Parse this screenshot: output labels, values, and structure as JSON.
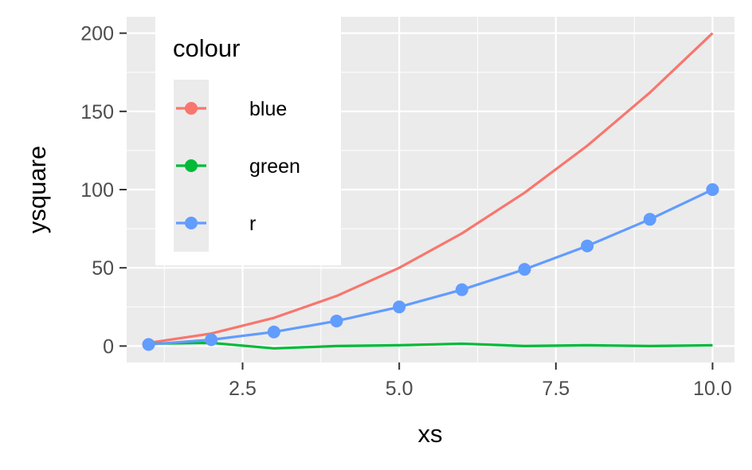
{
  "chart_data": {
    "type": "line",
    "xlabel": "xs",
    "ylabel": "ysquare",
    "xlim": [
      0.65,
      10.35
    ],
    "ylim": [
      -10.5,
      210.5
    ],
    "x_ticks": [
      2.5,
      5.0,
      7.5,
      10.0
    ],
    "x_tick_labels": [
      "2.5",
      "5.0",
      "7.5",
      "10.0"
    ],
    "y_ticks": [
      0,
      50,
      100,
      150,
      200
    ],
    "y_tick_labels": [
      "0",
      "50",
      "100",
      "150",
      "200"
    ],
    "grid": true,
    "legend": {
      "title": "colour",
      "placement": "top-left"
    },
    "x": [
      1,
      2,
      3,
      4,
      5,
      6,
      7,
      8,
      9,
      10
    ],
    "series": [
      {
        "name": "blue",
        "color": "#F8766D",
        "markers": false,
        "values": [
          2,
          8,
          18,
          32,
          50,
          72,
          98,
          128,
          162,
          200
        ]
      },
      {
        "name": "green",
        "color": "#00BA38",
        "markers": false,
        "values": [
          1.5,
          2,
          -1.5,
          0,
          0.5,
          1.5,
          0,
          0.5,
          0,
          0.5
        ]
      },
      {
        "name": "r",
        "color": "#619CFF",
        "markers": true,
        "values": [
          1,
          4,
          9,
          16,
          25,
          36,
          49,
          64,
          81,
          100
        ]
      }
    ]
  }
}
